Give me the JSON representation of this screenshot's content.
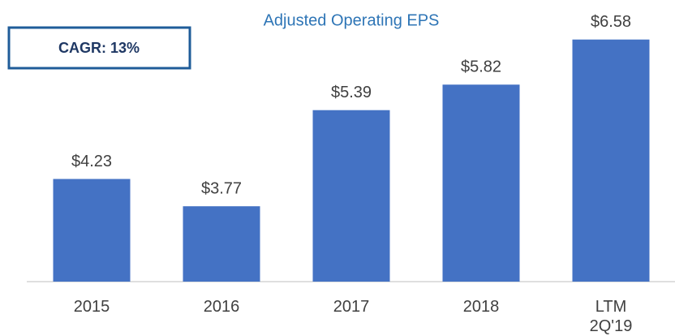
{
  "chart_data": {
    "type": "bar",
    "title": "Adjusted Operating EPS",
    "annotation": "CAGR: 13%",
    "categories": [
      "2015",
      "2016",
      "2017",
      "2018",
      "LTM 2Q'19"
    ],
    "values": [
      4.23,
      3.77,
      5.39,
      5.82,
      6.58
    ],
    "value_labels": [
      "$4.23",
      "$3.77",
      "$5.39",
      "$5.82",
      "$6.58"
    ],
    "color": "#4472c4",
    "ylim": [
      2.5,
      7
    ]
  }
}
